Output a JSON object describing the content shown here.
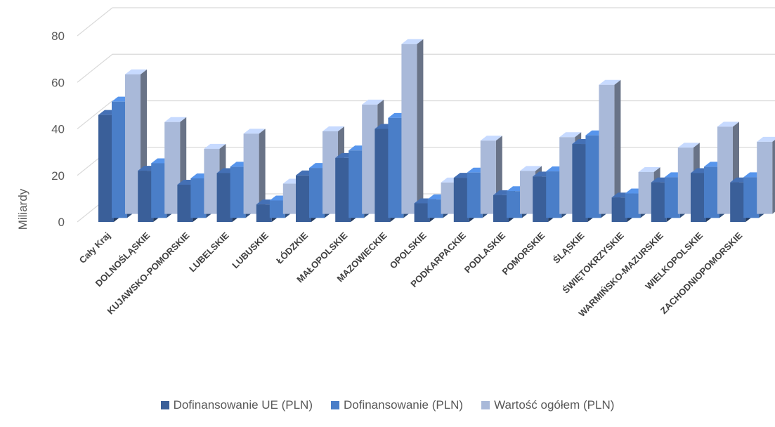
{
  "chart_data": {
    "type": "bar",
    "ylabel": "Miliardy",
    "ylim": [
      0,
      80
    ],
    "yticks": [
      "0",
      "20",
      "40",
      "60",
      "80"
    ],
    "categories": [
      "Cały Kraj",
      "DOLNOŚLĄSKIE",
      "KUJAWSKO-POMORSKIE",
      "LUBELSKIE",
      "LUBUSKIE",
      "ŁÓDZKIE",
      "MAŁOPOLSKIE",
      "MAZOWIECKIE",
      "OPOLSKIE",
      "PODKARPACKIE",
      "PODLASKIE",
      "POMORSKIE",
      "ŚLĄSKIE",
      "ŚWIĘTOKRZYSKIE",
      "WARMIŃSKO-MAZURSKIE",
      "WIELKOPOLSKIE",
      "ZACHODNIOPOMORSKIE"
    ],
    "series": [
      {
        "name": "Dofinansowanie UE (PLN)",
        "color": "#3a5f99",
        "values": [
          46,
          22,
          16,
          21,
          7.5,
          20,
          27.5,
          40,
          8,
          19,
          11.5,
          19.5,
          33.5,
          10.5,
          17,
          21,
          17
        ]
      },
      {
        "name": "Dofinansowanie (PLN)",
        "color": "#4a7ec8",
        "values": [
          50,
          23.5,
          17,
          22,
          7.5,
          21.5,
          29,
          43,
          8,
          19.5,
          11.5,
          20,
          35.5,
          10.5,
          17.5,
          22,
          17.5
        ]
      },
      {
        "name": "Wartość ogółem (PLN)",
        "color": "#a9b9d9",
        "values": [
          60,
          39.5,
          28,
          34.5,
          13,
          35.5,
          47,
          73,
          13.5,
          31.5,
          18.5,
          33,
          55.5,
          18,
          28.5,
          37.5,
          31
        ]
      }
    ],
    "grid": true,
    "legend_position": "bottom"
  }
}
